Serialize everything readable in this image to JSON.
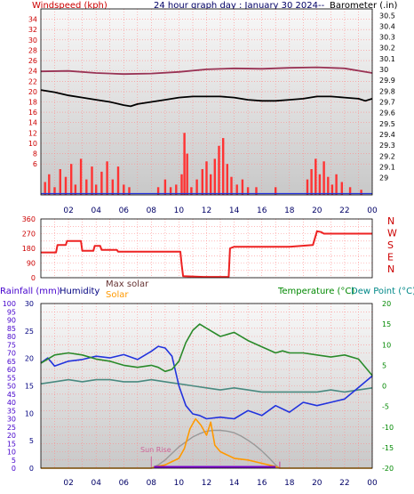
{
  "header": {
    "title": "24 hour graph day : January 30 2024--",
    "windspeed_label": "Windspeed (kph)",
    "barometer_label": "Barometer (.in)",
    "rainfall_label": "Rainfall (mm)",
    "humidity_label": "Humidity",
    "max_solar_label": "Max solar",
    "solar_label": "Solar",
    "temperature_label": "Temperature (°C)",
    "dewpoint_label": "Dew Point (°C)",
    "sunrise_label": "Sun Rise"
  },
  "colors": {
    "wind": "#ee0000",
    "gust": "#ff3333",
    "barometer": "#000000",
    "avg_wind": "#993355",
    "direction": "#ee2222",
    "temperature": "#2a8a2a",
    "dewpoint": "#4a8a80",
    "humidity": "#2233dd",
    "solar": "#ff9900",
    "max_solar": "#999999",
    "rain": "#7700cc",
    "wind_axis": "#cc0000",
    "baro_axis": "#000000",
    "rain_axis": "#4400cc",
    "humidity_axis": "#000080",
    "temp_axis": "#008800"
  },
  "chart_data": [
    {
      "type": "bar",
      "title": "24 hour graph day : January 30 2024--",
      "ylabel": "Windspeed (kph)",
      "y2label": "Barometer (.in)",
      "ylim": [
        0,
        36
      ],
      "y2lim": [
        28.84,
        30.56
      ],
      "yticks": [
        6,
        8,
        10,
        12,
        14,
        16,
        18,
        20,
        22,
        24,
        26,
        28,
        30,
        32,
        34
      ],
      "y2ticks": [
        "29",
        "29.1",
        "29.2",
        "29.3",
        "29.4",
        "29.5",
        "29.6",
        "29.7",
        "29.8",
        "29.9",
        "30",
        "30.1",
        "30.2",
        "30.3",
        "30.4",
        "30.5"
      ],
      "xlim": [
        0,
        24
      ],
      "xticks": [
        "02",
        "04",
        "06",
        "08",
        "10",
        "12",
        "14",
        "16",
        "18",
        "20",
        "22",
        "00"
      ],
      "grid": true,
      "series": [
        {
          "name": "Barometer (.in)",
          "x": [
            0.0,
            1.0,
            2.0,
            3.0,
            4.0,
            5.0,
            6.0,
            6.5,
            7.0,
            8.0,
            9.0,
            10.0,
            11.0,
            12.0,
            13.0,
            14.0,
            15.0,
            16.0,
            17.0,
            18.0,
            19.0,
            20.0,
            21.0,
            22.0,
            23.0,
            23.5,
            24.0
          ],
          "values": [
            29.81,
            29.79,
            29.76,
            29.74,
            29.72,
            29.7,
            29.67,
            29.66,
            29.68,
            29.7,
            29.72,
            29.74,
            29.75,
            29.75,
            29.75,
            29.74,
            29.72,
            29.71,
            29.71,
            29.72,
            29.73,
            29.75,
            29.75,
            29.74,
            29.73,
            29.71,
            29.73
          ]
        },
        {
          "name": "Average wind",
          "x": [
            0.0,
            2.0,
            4.0,
            6.0,
            8.0,
            10.0,
            12.0,
            14.0,
            16.0,
            18.0,
            20.0,
            22.0,
            24.0
          ],
          "values": [
            23.9,
            24.0,
            23.6,
            23.4,
            23.5,
            23.8,
            24.3,
            24.5,
            24.4,
            24.6,
            24.7,
            24.5,
            23.6
          ]
        },
        {
          "name": "Wind gust (kph)",
          "x": [
            0.3,
            0.6,
            1.0,
            1.4,
            1.8,
            2.2,
            2.5,
            2.9,
            3.3,
            3.7,
            4.0,
            4.4,
            4.8,
            5.2,
            5.6,
            6.0,
            6.4,
            8.5,
            9.0,
            9.4,
            9.8,
            10.2,
            10.4,
            10.6,
            10.9,
            11.3,
            11.7,
            12.0,
            12.3,
            12.6,
            12.9,
            13.2,
            13.5,
            13.8,
            14.2,
            14.6,
            15.0,
            15.6,
            17.0,
            19.3,
            19.6,
            19.9,
            20.2,
            20.5,
            20.8,
            21.1,
            21.4,
            21.8,
            22.4,
            23.2
          ],
          "values": [
            2.5,
            4.0,
            1.5,
            5.0,
            3.5,
            6.0,
            2.0,
            7.0,
            3.0,
            5.5,
            2.0,
            4.5,
            6.5,
            3.0,
            5.5,
            2.0,
            1.5,
            1.5,
            3.0,
            1.5,
            2.0,
            4.0,
            12.0,
            8.0,
            1.5,
            3.0,
            5.0,
            6.5,
            4.0,
            7.0,
            9.5,
            11.0,
            6.0,
            3.5,
            2.0,
            3.0,
            1.5,
            1.5,
            1.5,
            3.0,
            5.0,
            7.0,
            4.0,
            6.5,
            3.5,
            2.0,
            4.0,
            2.5,
            1.5,
            1.0
          ]
        }
      ]
    },
    {
      "type": "line",
      "title": "",
      "ylabel": "",
      "y2label": "",
      "ylim": [
        0,
        360
      ],
      "yticks": [
        0,
        45,
        90,
        135,
        180,
        225,
        270,
        315,
        360
      ],
      "ytick_labels": [
        "0",
        "",
        "90",
        "",
        "180",
        "",
        "270",
        "",
        "360"
      ],
      "direction_labels": [
        "N",
        "W",
        "S",
        "E",
        "N"
      ],
      "xlim": [
        0,
        24
      ],
      "grid": true,
      "series": [
        {
          "name": "Wind direction",
          "x": [
            0.0,
            1.1,
            1.2,
            1.8,
            1.9,
            2.0,
            2.9,
            3.0,
            3.8,
            3.9,
            4.3,
            4.4,
            5.5,
            5.6,
            10.1,
            10.2,
            10.3,
            11.8,
            13.6,
            13.7,
            14.0,
            16.0,
            18.0,
            19.7,
            20.0,
            20.3,
            20.5,
            24.0
          ],
          "values": [
            155,
            155,
            200,
            200,
            225,
            225,
            225,
            165,
            165,
            195,
            195,
            170,
            170,
            160,
            160,
            80,
            10,
            5,
            5,
            180,
            190,
            190,
            190,
            200,
            285,
            280,
            270,
            270
          ]
        }
      ]
    },
    {
      "type": "line",
      "title": "",
      "ylabel": "Rainfall (mm)",
      "y2label": "Temperature (°C)",
      "ylim": [
        0,
        100
      ],
      "y2lim": [
        -20,
        20
      ],
      "yticks": [
        0,
        5,
        10,
        15,
        20,
        25,
        30,
        35,
        40,
        45,
        50,
        55,
        60,
        65,
        70,
        75,
        80,
        85,
        90,
        95,
        100
      ],
      "humidity_ticks": [
        0,
        5,
        10,
        15,
        20,
        25,
        30
      ],
      "y2ticks": [
        -20,
        -15,
        -10,
        -5,
        0,
        5,
        10,
        15,
        20
      ],
      "xlim": [
        0,
        24
      ],
      "xticks": [
        "02",
        "04",
        "06",
        "08",
        "10",
        "12",
        "14",
        "16",
        "18",
        "20",
        "22",
        "00"
      ],
      "grid": true,
      "series": [
        {
          "name": "Temperature (°C)",
          "x": [
            0.0,
            1.0,
            2.0,
            3.0,
            4.0,
            5.0,
            6.0,
            7.0,
            8.0,
            8.5,
            9.0,
            9.5,
            10.0,
            10.5,
            11.0,
            11.5,
            12.0,
            13.0,
            14.0,
            15.0,
            16.0,
            17.0,
            17.5,
            18.0,
            19.0,
            20.0,
            21.0,
            22.0,
            23.0,
            24.0
          ],
          "values": [
            5.5,
            7.5,
            8.0,
            7.5,
            6.5,
            6.0,
            5.0,
            4.5,
            5.0,
            4.5,
            3.5,
            4.0,
            6.0,
            10.5,
            13.5,
            15.0,
            14.0,
            12.0,
            13.0,
            11.0,
            9.5,
            8.0,
            8.5,
            8.0,
            8.0,
            7.5,
            7.0,
            7.5,
            6.5,
            2.5
          ]
        },
        {
          "name": "Dew Point (°C)",
          "x": [
            0.0,
            1.0,
            2.0,
            3.0,
            4.0,
            5.0,
            6.0,
            7.0,
            8.0,
            9.0,
            10.0,
            11.0,
            12.0,
            13.0,
            14.0,
            15.0,
            16.0,
            17.0,
            18.0,
            19.0,
            20.0,
            21.0,
            22.0,
            23.0,
            24.0
          ],
          "values": [
            0.5,
            1.0,
            1.5,
            1.0,
            1.5,
            1.5,
            1.0,
            1.0,
            1.5,
            1.0,
            0.5,
            0.0,
            -0.5,
            -1.0,
            -0.5,
            -1.0,
            -1.5,
            -1.5,
            -1.5,
            -1.5,
            -1.5,
            -1.0,
            -1.5,
            -1.0,
            -0.5
          ]
        },
        {
          "name": "Humidity",
          "x": [
            0.0,
            0.5,
            1.0,
            2.0,
            3.0,
            4.0,
            5.0,
            6.0,
            7.0,
            8.0,
            8.5,
            9.0,
            9.5,
            10.0,
            10.5,
            11.0,
            11.5,
            12.0,
            13.0,
            14.0,
            15.0,
            16.0,
            17.0,
            18.0,
            19.0,
            20.0,
            21.0,
            22.0,
            23.0,
            24.0
          ],
          "values": [
            64,
            67,
            62,
            65,
            66,
            68,
            67,
            69,
            66,
            71,
            74,
            73,
            68,
            50,
            38,
            33,
            32,
            30,
            31,
            30,
            35,
            32,
            38,
            34,
            40,
            38,
            40,
            42,
            49,
            56
          ]
        },
        {
          "name": "Solar",
          "x": [
            0.0,
            8.0,
            8.4,
            9.0,
            9.5,
            10.0,
            10.4,
            10.8,
            11.2,
            11.6,
            12.0,
            12.3,
            12.6,
            13.0,
            13.5,
            14.0,
            15.0,
            16.0,
            17.0,
            17.3,
            24.0
          ],
          "values": [
            0,
            0,
            1,
            2,
            4,
            6,
            12,
            24,
            30,
            26,
            20,
            28,
            14,
            10,
            8,
            6,
            5,
            3,
            1,
            0,
            0
          ]
        },
        {
          "name": "Max solar",
          "x": [
            8.0,
            8.5,
            9.0,
            9.5,
            10.0,
            10.5,
            11.0,
            11.5,
            12.0,
            12.5,
            13.0,
            13.5,
            14.0,
            14.5,
            15.0,
            15.5,
            16.0,
            16.5,
            17.0,
            17.3
          ],
          "values": [
            0,
            2,
            5,
            9,
            13,
            16,
            19,
            21,
            22.5,
            23,
            23,
            22.5,
            21.5,
            19.5,
            17,
            14,
            10.5,
            6.5,
            2,
            0
          ]
        }
      ]
    }
  ]
}
